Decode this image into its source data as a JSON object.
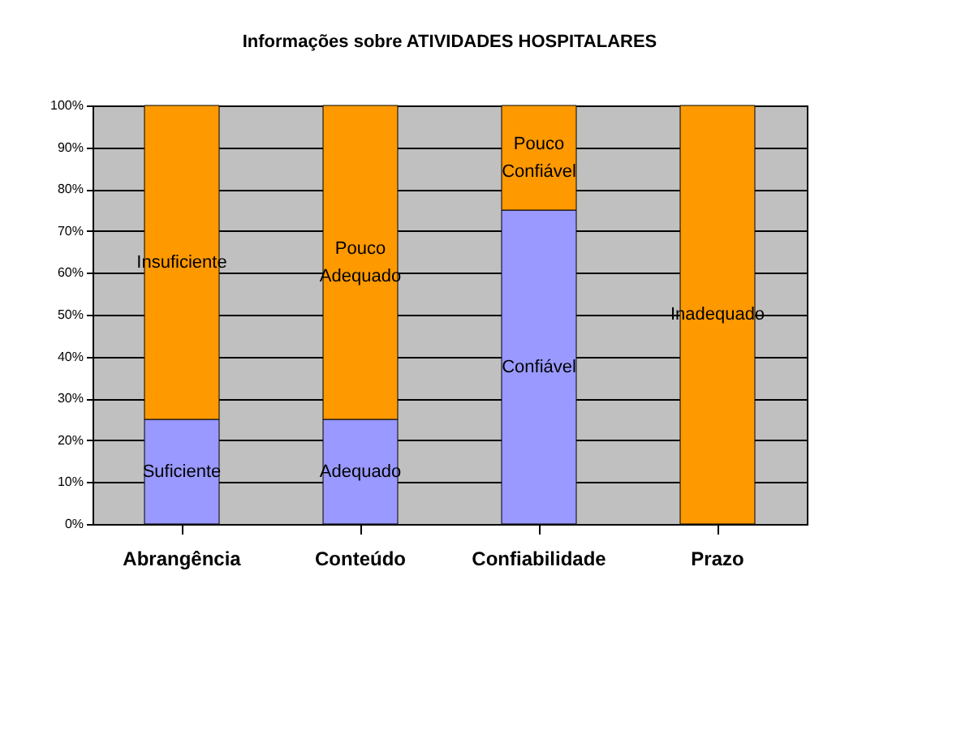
{
  "chart_data": {
    "type": "bar",
    "title": "Informações sobre ATIVIDADES HOSPITALARES",
    "categories": [
      "Abrangência",
      "Conteúdo",
      "Confiabilidade",
      "Prazo"
    ],
    "series": [
      {
        "color": "#9999ff",
        "values": [
          25,
          25,
          75,
          0
        ],
        "value_labels": [
          "Suficiente",
          "Adequado",
          "Confiável",
          null
        ]
      },
      {
        "color": "#ff9900",
        "values": [
          75,
          75,
          25,
          100
        ],
        "value_labels": [
          "Insuficiente",
          "Pouco\nAdequado",
          "Pouco\nConfiável",
          "Inadequado"
        ]
      }
    ],
    "stacked": true,
    "ylim": [
      0,
      100
    ],
    "yticks": [
      {
        "value": 0,
        "label": "0%"
      },
      {
        "value": 10,
        "label": "10%"
      },
      {
        "value": 20,
        "label": "20%"
      },
      {
        "value": 30,
        "label": "30%"
      },
      {
        "value": 40,
        "label": "40%"
      },
      {
        "value": 50,
        "label": "50%"
      },
      {
        "value": 60,
        "label": "60%"
      },
      {
        "value": 70,
        "label": "70%"
      },
      {
        "value": 80,
        "label": "80%"
      },
      {
        "value": 90,
        "label": "90%"
      },
      {
        "value": 100,
        "label": "100%"
      }
    ],
    "grid": "y",
    "legend": false
  }
}
